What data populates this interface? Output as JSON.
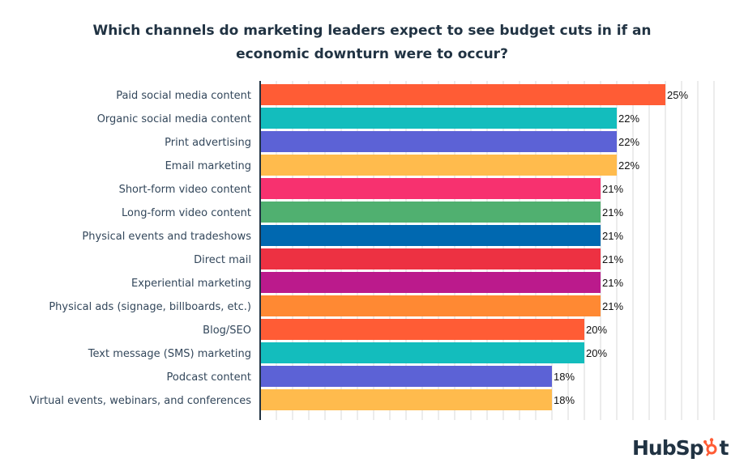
{
  "chart_data": {
    "type": "bar",
    "orientation": "horizontal",
    "title": "Which channels do marketing leaders expect to see budget cuts in if an economic downturn were to occur?",
    "title_lines": [
      "Which channels do marketing leaders expect to see budget cuts in if an",
      "economic downturn were to occur?"
    ],
    "xlabel": "",
    "ylabel": "",
    "xlim": [
      0,
      28
    ],
    "grid": true,
    "value_suffix": "%",
    "categories": [
      "Paid social media content",
      "Organic social media content",
      "Print advertising",
      "Email marketing",
      "Short-form video content",
      "Long-form video content",
      "Physical events and tradeshows",
      "Direct mail",
      "Experiential marketing",
      "Physical ads (signage, billboards, etc.)",
      "Blog/SEO",
      "Text message (SMS) marketing",
      "Podcast content",
      "Virtual events, webinars, and conferences"
    ],
    "values": [
      25,
      22,
      22,
      22,
      21,
      21,
      21,
      21,
      21,
      21,
      20,
      20,
      18,
      18
    ],
    "labels": [
      "25%",
      "22%",
      "22%",
      "22%",
      "21%",
      "21%",
      "21%",
      "21%",
      "21%",
      "21%",
      "20%",
      "20%",
      "18%",
      "18%"
    ],
    "colors": [
      "#ff5c35",
      "#13bdbd",
      "#5c62d6",
      "#ffbb4d",
      "#f7316f",
      "#50b070",
      "#0068b0",
      "#ed3142",
      "#bb1a8c",
      "#ff8933",
      "#ff5c35",
      "#13bdbd",
      "#5c62d6",
      "#ffbb4d"
    ]
  },
  "brand": {
    "logo_text_a": "HubS",
    "logo_text_b": "p",
    "logo_text_c": "t",
    "logo_color": "#213343",
    "accent": "#ff5c35"
  }
}
